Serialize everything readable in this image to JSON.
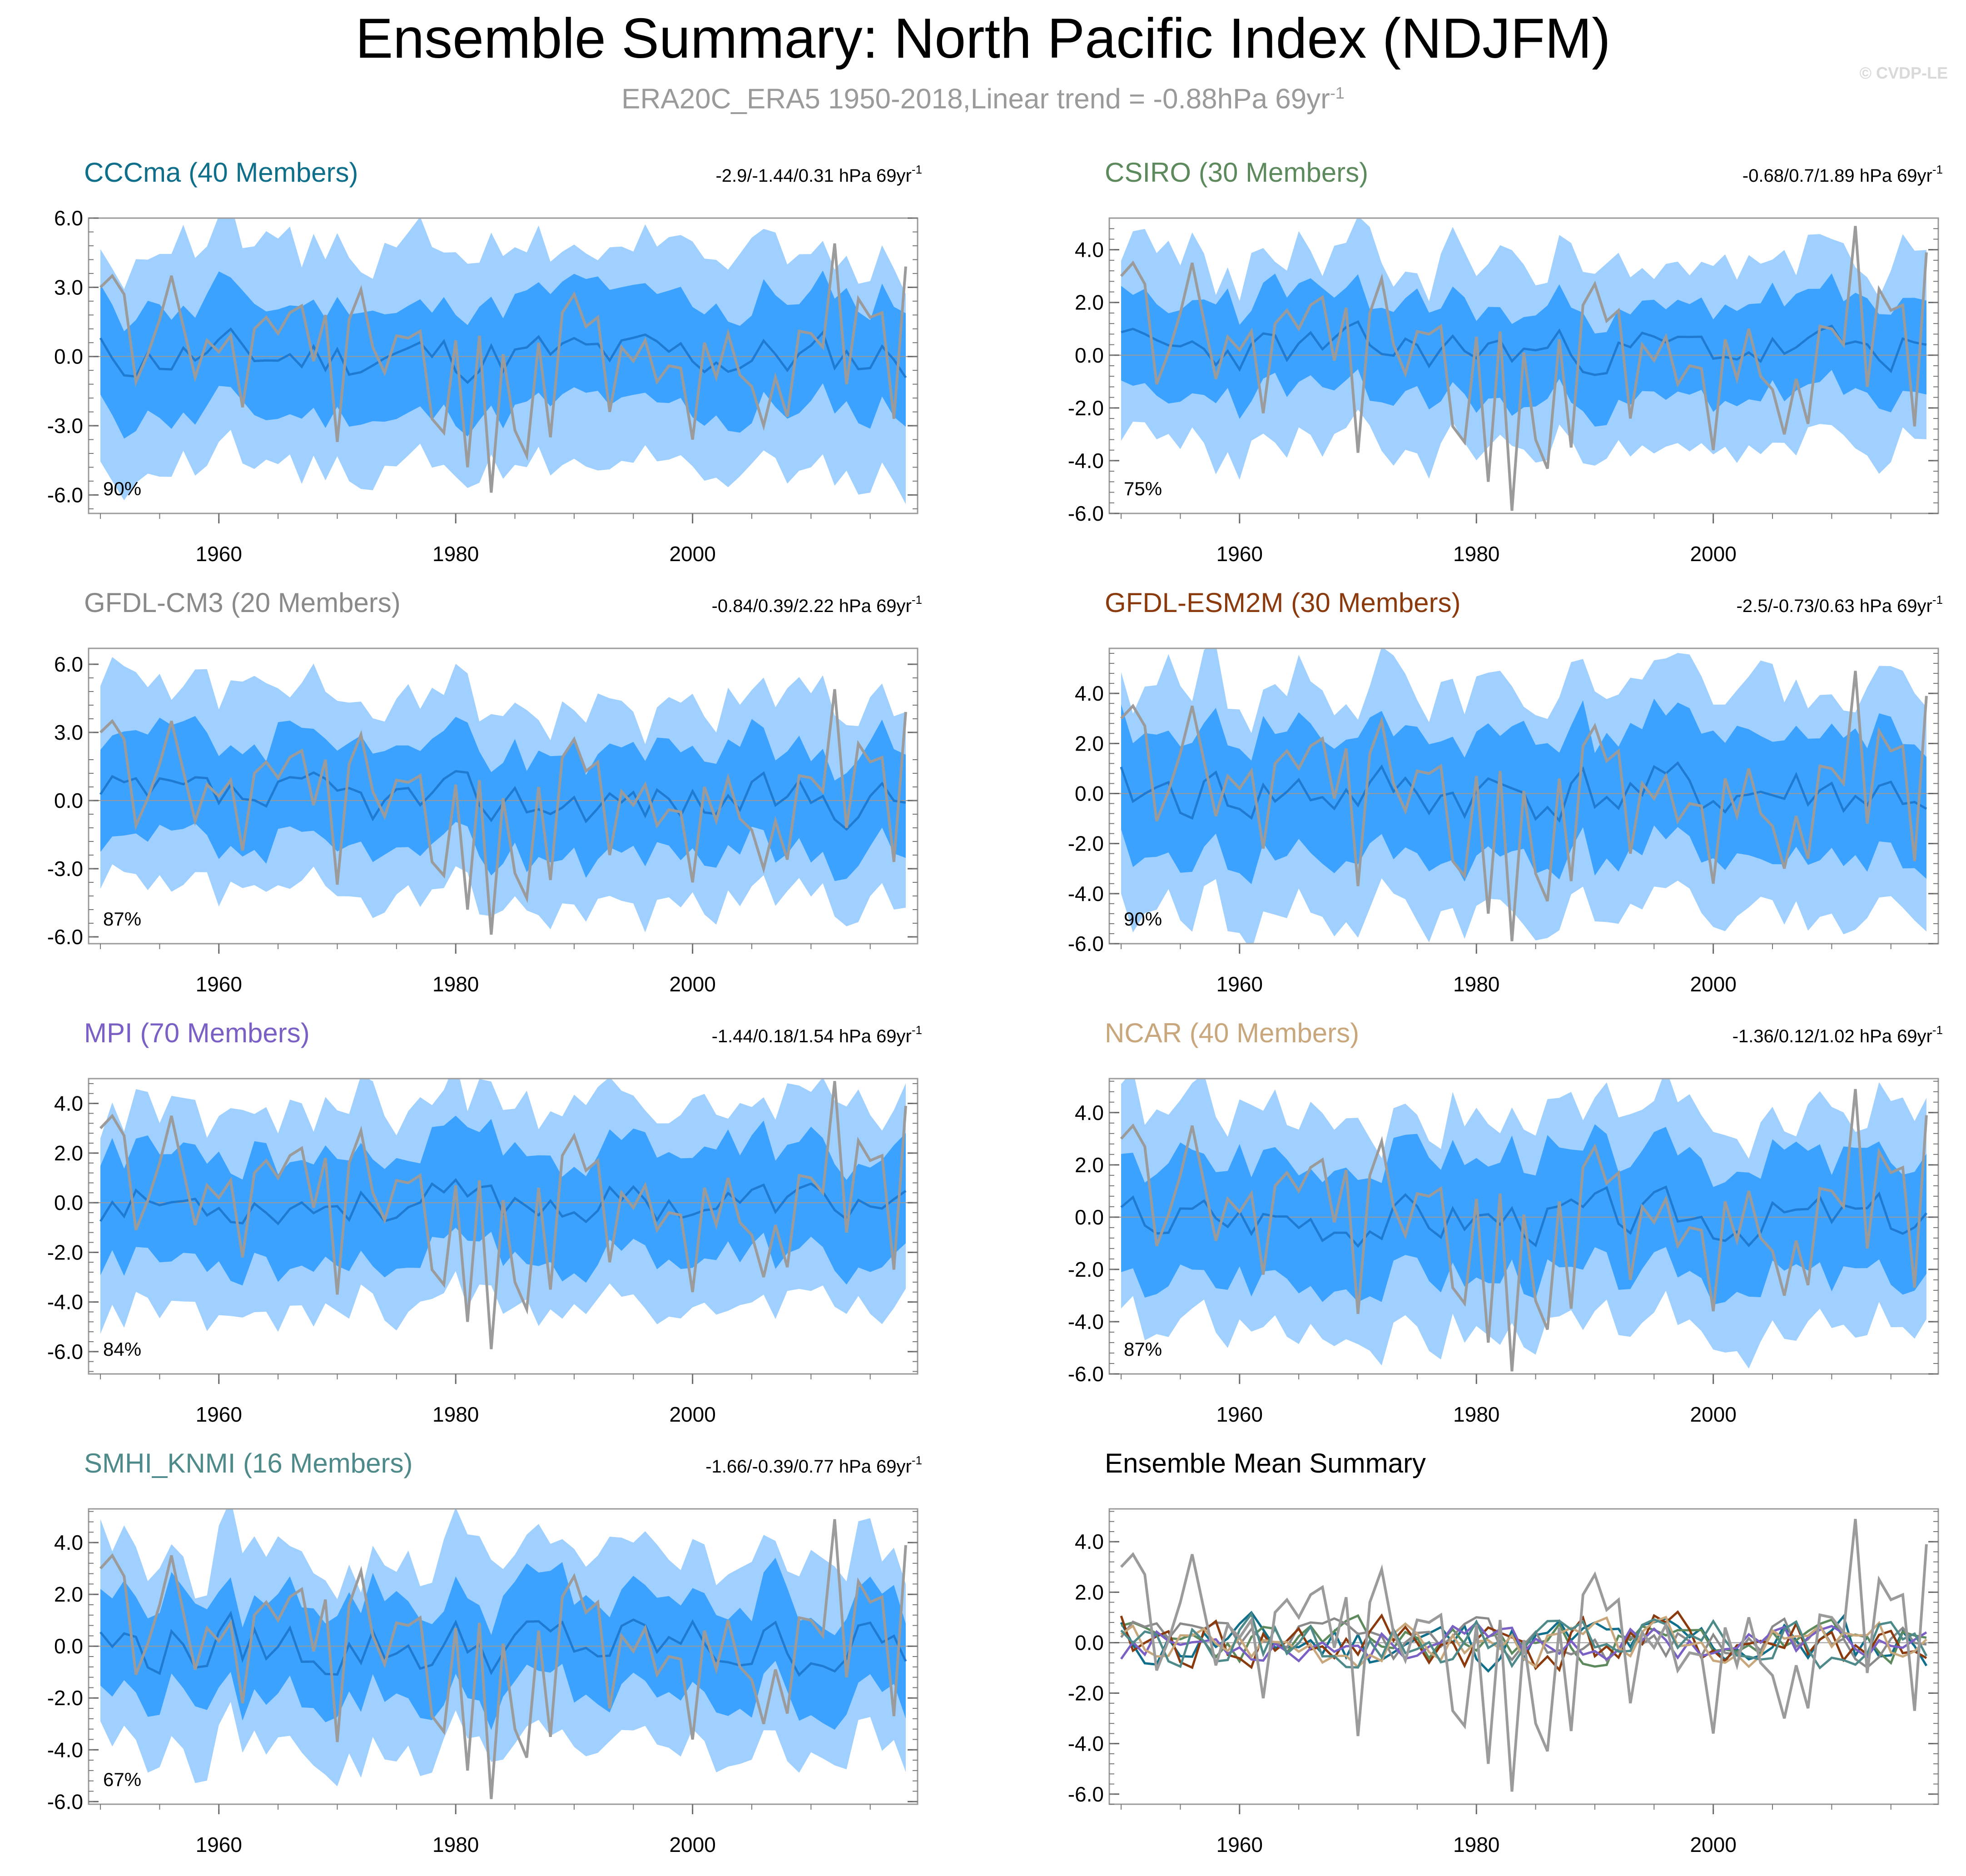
{
  "title": "Ensemble Summary: North Pacific Index (NDJFM)",
  "subtitle": {
    "text": "ERA20C_ERA5 1950-2018,Linear trend = -0.88hPa 69yr",
    "sup": "-1"
  },
  "copyright": "© CVDP-LE",
  "colors": {
    "outer_band": "#9fd0ff",
    "inner_band": "#3ba2ff",
    "ensemble_mean": "#1f7ad1",
    "observed": "#9b9b9b",
    "zero_line": "#9a9a9a"
  },
  "chart_data": [
    {
      "type": "area",
      "title": "CCCma (40 Members)",
      "title_color": "#0f6f8a",
      "trend_text": "-2.9/-1.44/0.31 hPa 69yr",
      "trend_sup": "-1",
      "percent_label": "90%",
      "x_start": 1950,
      "x_end": 2018,
      "xlim": [
        1949,
        2019
      ],
      "ylim": [
        -6.8,
        6.0
      ],
      "yticks": [
        6,
        3,
        0,
        -3,
        -6
      ],
      "ytick_labels": [
        "6.0",
        "3.0",
        "0.0",
        "-3.0",
        "-6.0"
      ],
      "xticks": [
        1960,
        1980,
        2000
      ],
      "xtick_labels": [
        "1960",
        "1980",
        "2000"
      ],
      "band_outer_width": 4.6,
      "band_inner_width": 2.4,
      "mean_scale": 0.45,
      "mean_offset": 0.0,
      "seed": 11
    },
    {
      "type": "area",
      "title": "CSIRO (30 Members)",
      "title_color": "#5c8a5c",
      "trend_text": "-0.68/0.7/1.89 hPa 69yr",
      "trend_sup": "-1",
      "percent_label": "75%",
      "x_start": 1950,
      "x_end": 2018,
      "xlim": [
        1949,
        2019
      ],
      "ylim": [
        -6.0,
        5.2
      ],
      "yticks": [
        4,
        2,
        0,
        -2,
        -4,
        -6
      ],
      "ytick_labels": [
        "4.0",
        "2.0",
        "0.0",
        "-2.0",
        "-4.0",
        "-6.0"
      ],
      "xticks": [
        1960,
        1980,
        2000
      ],
      "xtick_labels": [
        "1960",
        "1980",
        "2000"
      ],
      "band_outer_width": 3.4,
      "band_inner_width": 1.8,
      "mean_scale": 0.35,
      "mean_offset": 0.2,
      "seed": 23
    },
    {
      "type": "area",
      "title": "GFDL-CM3 (20 Members)",
      "title_color": "#8a8a8a",
      "trend_text": "-0.84/0.39/2.22 hPa 69yr",
      "trend_sup": "-1",
      "percent_label": "87%",
      "x_start": 1950,
      "x_end": 2018,
      "xlim": [
        1949,
        2019
      ],
      "ylim": [
        -6.3,
        6.7
      ],
      "yticks": [
        6,
        3,
        0,
        -3,
        -6
      ],
      "ytick_labels": [
        "6.0",
        "3.0",
        "0.0",
        "-3.0",
        "-6.0"
      ],
      "xticks": [
        1960,
        1980,
        2000
      ],
      "xtick_labels": [
        "1960",
        "1980",
        "2000"
      ],
      "band_outer_width": 4.2,
      "band_inner_width": 2.3,
      "mean_scale": 0.45,
      "mean_offset": 0.0,
      "seed": 37
    },
    {
      "type": "area",
      "title": "GFDL-ESM2M (30 Members)",
      "title_color": "#8b3a0e",
      "trend_text": "-2.5/-0.73/0.63 hPa 69yr",
      "trend_sup": "-1",
      "percent_label": "90%",
      "x_start": 1950,
      "x_end": 2018,
      "xlim": [
        1949,
        2019
      ],
      "ylim": [
        -6.0,
        5.8
      ],
      "yticks": [
        4,
        2,
        0,
        -2,
        -4,
        -6
      ],
      "ytick_labels": [
        "4.0",
        "2.0",
        "0.0",
        "-2.0",
        "-4.0",
        "-6.0"
      ],
      "xticks": [
        1960,
        1980,
        2000
      ],
      "xtick_labels": [
        "1960",
        "1980",
        "2000"
      ],
      "band_outer_width": 4.4,
      "band_inner_width": 2.5,
      "mean_scale": 0.5,
      "mean_offset": 0.0,
      "seed": 41
    },
    {
      "type": "area",
      "title": "MPI (70 Members)",
      "title_color": "#7a5fc4",
      "trend_text": "-1.44/0.18/1.54 hPa 69yr",
      "trend_sup": "-1",
      "percent_label": "84%",
      "x_start": 1950,
      "x_end": 2018,
      "xlim": [
        1949,
        2019
      ],
      "ylim": [
        -6.9,
        5.0
      ],
      "yticks": [
        4,
        2,
        0,
        -2,
        -4,
        -6
      ],
      "ytick_labels": [
        "4.0",
        "2.0",
        "0.0",
        "-2.0",
        "-4.0",
        "-6.0"
      ],
      "xticks": [
        1960,
        1980,
        2000
      ],
      "xtick_labels": [
        "1960",
        "1980",
        "2000"
      ],
      "band_outer_width": 3.9,
      "band_inner_width": 2.2,
      "mean_scale": 0.35,
      "mean_offset": 0.0,
      "seed": 53
    },
    {
      "type": "area",
      "title": "NCAR (40 Members)",
      "title_color": "#c9a77c",
      "trend_text": "-1.36/0.12/1.02 hPa 69yr",
      "trend_sup": "-1",
      "percent_label": "87%",
      "x_start": 1950,
      "x_end": 2018,
      "xlim": [
        1949,
        2019
      ],
      "ylim": [
        -6.0,
        5.3
      ],
      "yticks": [
        4,
        2,
        0,
        -2,
        -4,
        -6
      ],
      "ytick_labels": [
        "4.0",
        "2.0",
        "0.0",
        "-2.0",
        "-4.0",
        "-6.0"
      ],
      "xticks": [
        1960,
        1980,
        2000
      ],
      "xtick_labels": [
        "1960",
        "1980",
        "2000"
      ],
      "band_outer_width": 4.0,
      "band_inner_width": 2.3,
      "mean_scale": 0.4,
      "mean_offset": 0.0,
      "seed": 67
    },
    {
      "type": "area",
      "title": "SMHI_KNMI (16 Members)",
      "title_color": "#4e8a8a",
      "trend_text": "-1.66/-0.39/0.77 hPa 69yr",
      "trend_sup": "-1",
      "percent_label": "67%",
      "x_start": 1950,
      "x_end": 2018,
      "xlim": [
        1949,
        2019
      ],
      "ylim": [
        -6.1,
        5.3
      ],
      "yticks": [
        4,
        2,
        0,
        -2,
        -4,
        -6
      ],
      "ytick_labels": [
        "4.0",
        "2.0",
        "0.0",
        "-2.0",
        "-4.0",
        "-6.0"
      ],
      "xticks": [
        1960,
        1980,
        2000
      ],
      "xtick_labels": [
        "1960",
        "1980",
        "2000"
      ],
      "band_outer_width": 3.6,
      "band_inner_width": 1.9,
      "mean_scale": 0.5,
      "mean_offset": 0.0,
      "seed": 79
    },
    {
      "type": "line",
      "title": "Ensemble Mean Summary",
      "title_color": "#000000",
      "trend_text": "",
      "trend_sup": "",
      "percent_label": "",
      "x_start": 1950,
      "x_end": 2018,
      "xlim": [
        1949,
        2019
      ],
      "ylim": [
        -6.4,
        5.3
      ],
      "yticks": [
        4,
        2,
        0,
        -2,
        -4,
        -6
      ],
      "ytick_labels": [
        "4.0",
        "2.0",
        "0.0",
        "-2.0",
        "-4.0",
        "-6.0"
      ],
      "xticks": [
        1960,
        1980,
        2000
      ],
      "xtick_labels": [
        "1960",
        "1980",
        "2000"
      ],
      "series": [
        {
          "name": "CCCma",
          "color": "#0f6f8a",
          "seed": 11,
          "scale": 0.45
        },
        {
          "name": "CSIRO",
          "color": "#5c8a5c",
          "seed": 23,
          "scale": 0.35
        },
        {
          "name": "GFDL-CM3",
          "color": "#8a8a8a",
          "seed": 37,
          "scale": 0.35
        },
        {
          "name": "GFDL-ESM2M",
          "color": "#8b3a0e",
          "seed": 41,
          "scale": 0.5
        },
        {
          "name": "MPI",
          "color": "#7a5fc4",
          "seed": 53,
          "scale": 0.3
        },
        {
          "name": "NCAR",
          "color": "#c9a77c",
          "seed": 67,
          "scale": 0.35
        },
        {
          "name": "SMHI_KNMI",
          "color": "#4e8a8a",
          "seed": 79,
          "scale": 0.45
        }
      ]
    }
  ],
  "observed": {
    "name": "ERA20C_ERA5",
    "years_start": 1950,
    "values": [
      3.0,
      3.5,
      2.7,
      -1.1,
      0.1,
      1.6,
      3.5,
      1.3,
      -0.9,
      0.7,
      0.2,
      0.9,
      -2.2,
      1.2,
      1.7,
      1.0,
      1.9,
      2.2,
      -0.2,
      1.8,
      -3.7,
      1.6,
      2.9,
      0.4,
      -0.7,
      0.9,
      0.8,
      1.1,
      -2.7,
      -3.3,
      0.7,
      -4.8,
      0.9,
      -5.9,
      0.1,
      -3.2,
      -4.3,
      0.6,
      -3.5,
      1.9,
      2.7,
      1.3,
      1.7,
      -2.4,
      0.4,
      -0.2,
      0.7,
      -1.1,
      -0.4,
      -0.5,
      -3.6,
      0.6,
      -0.9,
      1.0,
      -0.8,
      -1.3,
      -3.0,
      -0.9,
      -2.6,
      1.1,
      1.0,
      0.4,
      4.9,
      -1.2,
      2.5,
      1.7,
      1.9,
      -2.7,
      3.9
    ]
  }
}
